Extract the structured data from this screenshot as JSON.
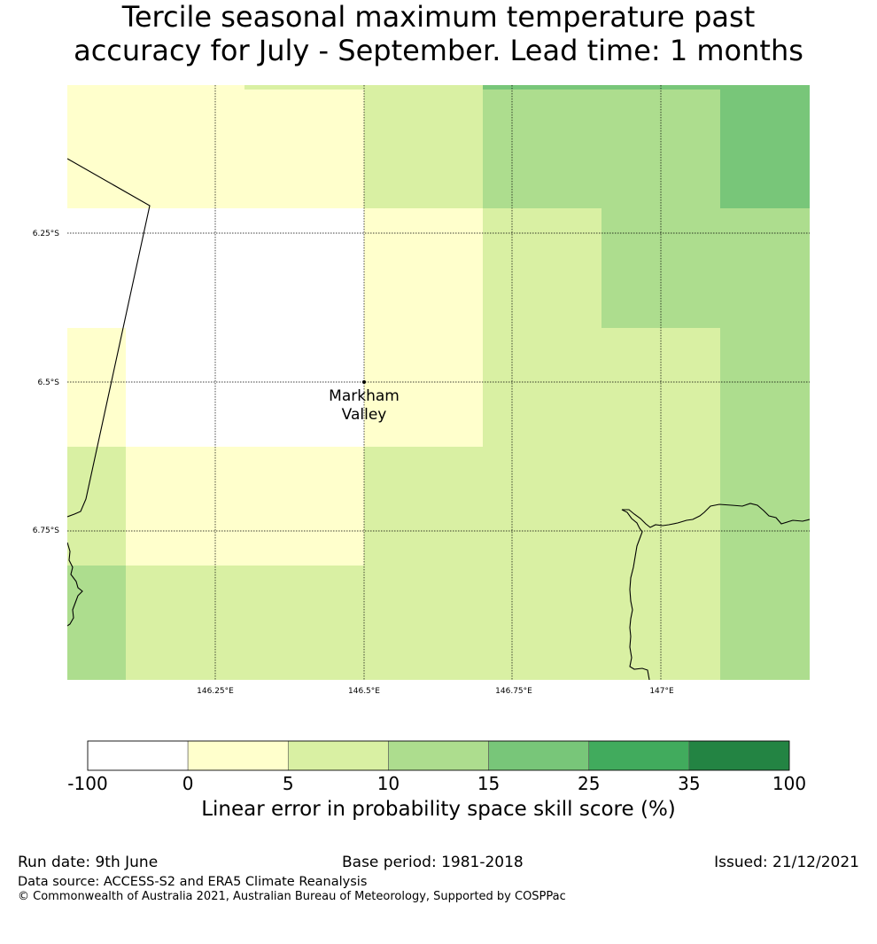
{
  "title": {
    "line1": "Tercile seasonal maximum temperature past",
    "line2": "accuracy for July - September. Lead time: 1 months"
  },
  "map": {
    "lon_labels": [
      "146.25°E",
      "146.5°E",
      "146.75°E",
      "147°E"
    ],
    "lat_labels": [
      "6.25°S",
      "6.5°S",
      "6.75°S"
    ],
    "place": {
      "name_line1": "Markham",
      "name_line2": "Valley"
    }
  },
  "colorbar": {
    "bins": [
      {
        "from": -100,
        "to": 0,
        "color": "#ffffff"
      },
      {
        "from": 0,
        "to": 5,
        "color": "#ffffcc"
      },
      {
        "from": 5,
        "to": 10,
        "color": "#d9f0a3"
      },
      {
        "from": 10,
        "to": 15,
        "color": "#addd8e"
      },
      {
        "from": 15,
        "to": 25,
        "color": "#78c679"
      },
      {
        "from": 25,
        "to": 35,
        "color": "#41ab5d"
      },
      {
        "from": 35,
        "to": 100,
        "color": "#238443"
      }
    ],
    "tick_labels": [
      "-100",
      "0",
      "5",
      "10",
      "15",
      "25",
      "35",
      "100"
    ],
    "label": "Linear error in probability space skill score (%)"
  },
  "footer": {
    "run_date": "Run date: 9th June",
    "base_period": "Base period: 1981-2018",
    "issued": "Issued: 21/12/2021",
    "data_source": "Data source: ACCESS-S2 and ERA5 Climate Reanalysis",
    "copyright": "© Commonwealth of Australia 2021, Australian Bureau of Meteorology, Supported by COSPPac"
  }
}
